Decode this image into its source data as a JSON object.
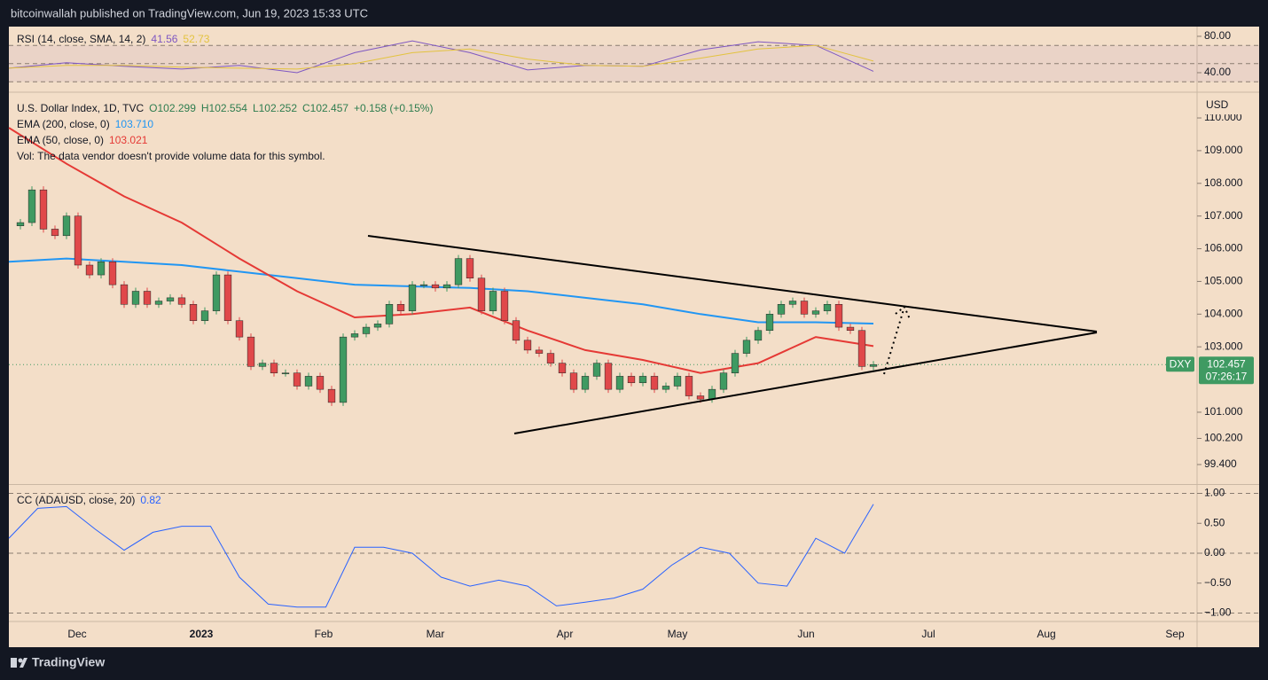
{
  "header": "bitcoinwallah published on TradingView.com, Jun 19, 2023 15:33 UTC",
  "footer": "TradingView",
  "time_axis": [
    "Dec",
    "2023",
    "Feb",
    "Mar",
    "Apr",
    "May",
    "Jun",
    "Jul",
    "Aug",
    "Sep"
  ],
  "chart_data": [
    {
      "type": "line",
      "title": "RSI (14, close, SMA, 14, 2)",
      "ylim": [
        19.5,
        90.7
      ],
      "yticks": [
        {
          "value": 80,
          "label": "80.00"
        },
        {
          "value": 40,
          "label": "40.00"
        }
      ],
      "band": [
        30,
        70
      ],
      "guides": [
        70,
        50,
        30
      ],
      "series": [
        {
          "color": "#7e57c2",
          "legend_value": "41.56",
          "values": [
            45,
            51,
            47,
            44,
            48,
            40,
            62,
            75,
            62,
            43,
            48,
            47,
            65,
            74,
            70,
            41.56
          ]
        },
        {
          "color": "#e3c33f",
          "legend_value": "52.73",
          "values": [
            45,
            48,
            48,
            46,
            45,
            44,
            50,
            62,
            66,
            55,
            48,
            47,
            56,
            66,
            70,
            52.73
          ]
        }
      ]
    },
    {
      "type": "candlestick",
      "title": "U.S. Dollar Index, 1D, TVC",
      "ohlc_labels": [
        "O102.299",
        "H102.554",
        "L102.252",
        "C102.457",
        "+0.158 (+0.15%)"
      ],
      "note": "Vol: The data vendor doesn't provide volume data for this symbol.",
      "axis_unit": "USD",
      "ylim": [
        98.83,
        110.76
      ],
      "yticks": [
        {
          "value": 110,
          "label": "110.000"
        },
        {
          "value": 109,
          "label": "109.000"
        },
        {
          "value": 108,
          "label": "108.000"
        },
        {
          "value": 107,
          "label": "107.000"
        },
        {
          "value": 106,
          "label": "106.000"
        },
        {
          "value": 105,
          "label": "105.000"
        },
        {
          "value": 104,
          "label": "104.000"
        },
        {
          "value": 103,
          "label": "103.000"
        },
        {
          "value": 101,
          "label": "101.000"
        },
        {
          "value": 100.2,
          "label": "100.200"
        },
        {
          "value": 99.4,
          "label": "99.400"
        }
      ],
      "up_color": "#3f9a62",
      "down_color": "#e0484a",
      "values": [
        106.7,
        106.8,
        107.8,
        106.6,
        106.4,
        107.0,
        105.5,
        105.2,
        105.6,
        104.9,
        104.3,
        104.7,
        104.3,
        104.4,
        104.5,
        104.3,
        103.8,
        104.1,
        105.2,
        103.8,
        103.3,
        102.4,
        102.5,
        102.2,
        102.2,
        101.8,
        102.1,
        101.7,
        101.3,
        103.3,
        103.4,
        103.6,
        103.7,
        104.3,
        104.1,
        104.9,
        104.9,
        104.8,
        104.9,
        105.7,
        105.1,
        104.1,
        104.7,
        103.8,
        103.2,
        102.9,
        102.8,
        102.5,
        102.2,
        101.7,
        102.1,
        102.5,
        101.7,
        102.1,
        101.9,
        102.1,
        101.7,
        101.8,
        102.1,
        101.5,
        101.4,
        101.7,
        102.2,
        102.8,
        103.2,
        103.5,
        104.0,
        104.3,
        104.4,
        104.0,
        104.1,
        104.3,
        103.6,
        103.5,
        102.4,
        102.457
      ],
      "overlays": [
        {
          "name": "EMA (200, close, 0)",
          "color": "#2196f3",
          "legend_value": "103.710",
          "values": [
            105.6,
            105.7,
            105.6,
            105.5,
            105.3,
            105.1,
            104.9,
            104.85,
            104.8,
            104.7,
            104.5,
            104.3,
            104.0,
            103.75,
            103.75,
            103.71
          ]
        },
        {
          "name": "EMA (50, close, 0)",
          "color": "#e53935",
          "legend_value": "103.021",
          "values": [
            109.7,
            108.6,
            107.6,
            106.8,
            105.7,
            104.7,
            103.9,
            104.0,
            104.2,
            103.5,
            102.9,
            102.6,
            102.2,
            102.5,
            103.3,
            103.021
          ]
        }
      ],
      "price_tag": {
        "symbol": "DXY",
        "price": "102.457",
        "countdown": "07:26:17"
      }
    },
    {
      "type": "line",
      "title": "CC (ADAUSD, close, 20)",
      "ylim": [
        -1.126,
        1.126
      ],
      "yticks": [
        {
          "value": 1,
          "label": "1.00"
        },
        {
          "value": 0.5,
          "label": "0.50"
        },
        {
          "value": 0,
          "label": "0.00"
        },
        {
          "value": -0.5,
          "label": "−0.50"
        },
        {
          "value": -1,
          "label": "−1.00"
        }
      ],
      "guides": [
        1,
        0,
        -1
      ],
      "series": [
        {
          "color": "#2962ff",
          "legend_value": "0.82",
          "values": [
            0.25,
            0.75,
            0.78,
            0.4,
            0.05,
            0.35,
            0.45,
            0.45,
            -0.4,
            -0.85,
            -0.9,
            -0.9,
            0.1,
            0.1,
            0.0,
            -0.4,
            -0.55,
            -0.45,
            -0.55,
            -0.88,
            -0.82,
            -0.75,
            -0.6,
            -0.2,
            0.1,
            0.0,
            -0.5,
            -0.55,
            0.25,
            0.0,
            0.82
          ]
        }
      ]
    }
  ]
}
